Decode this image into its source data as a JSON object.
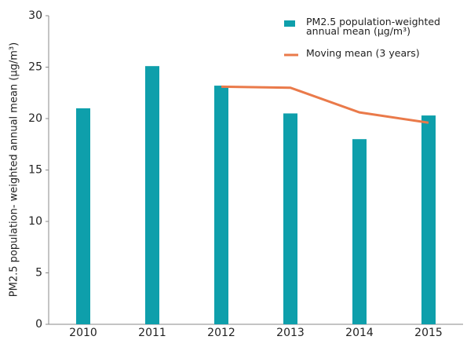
{
  "chart_data": {
    "type": "bar",
    "ylabel": "PM2.5 population- weighted  annual mean (µg/m³)",
    "categories": [
      "2010",
      "2011",
      "2012",
      "2013",
      "2014",
      "2015"
    ],
    "series": [
      {
        "name": "PM2.5 population-weighted annual mean (µg/m³)",
        "type": "bar",
        "color": "#0e9fab",
        "values": [
          21,
          25.1,
          23.2,
          20.5,
          18,
          20.3
        ]
      },
      {
        "name": "Moving mean (3 years)",
        "type": "line",
        "color": "#ea7a4a",
        "values": [
          null,
          null,
          23.1,
          23,
          20.6,
          19.6
        ]
      }
    ],
    "ylim": [
      0,
      30
    ],
    "yticks": [
      0,
      5,
      10,
      15,
      20,
      25,
      30
    ],
    "grid": false,
    "legend": "upper right"
  }
}
